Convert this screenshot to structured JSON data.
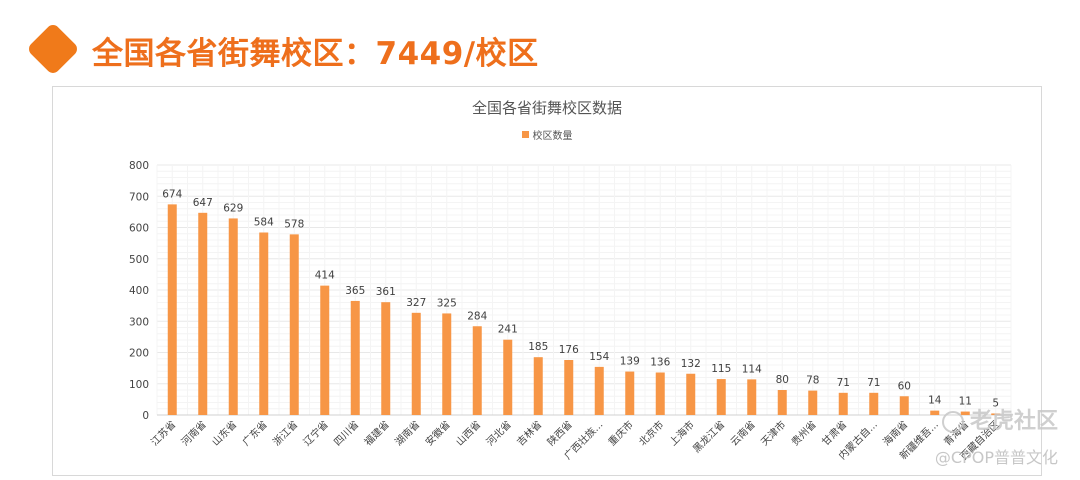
{
  "header": {
    "title": "全国各省街舞校区：7449/校区"
  },
  "watermark": {
    "brand": "老虎社区",
    "sub": "@CPOP普普文化"
  },
  "chart_data": {
    "type": "bar",
    "title": "全国各省街舞校区数据",
    "legend_position": "top",
    "grid": true,
    "colors": {
      "bar": "#f79646"
    },
    "ylim": [
      0,
      800
    ],
    "yticks": [
      0,
      100,
      200,
      300,
      400,
      500,
      600,
      700,
      800
    ],
    "categories": [
      "江苏省",
      "河南省",
      "山东省",
      "广东省",
      "浙江省",
      "辽宁省",
      "四川省",
      "福建省",
      "湖南省",
      "安徽省",
      "山西省",
      "河北省",
      "吉林省",
      "陕西省",
      "广西壮族...",
      "重庆市",
      "北京市",
      "上海市",
      "黑龙江省",
      "云南省",
      "天津市",
      "贵州省",
      "甘肃省",
      "内蒙古自...",
      "海南省",
      "新疆维吾...",
      "青海省",
      "西藏自治区"
    ],
    "series": [
      {
        "name": "校区数量",
        "values": [
          674,
          647,
          629,
          584,
          578,
          414,
          365,
          361,
          327,
          325,
          284,
          241,
          185,
          176,
          154,
          139,
          136,
          132,
          115,
          114,
          80,
          78,
          71,
          71,
          60,
          14,
          11,
          5
        ]
      }
    ]
  }
}
